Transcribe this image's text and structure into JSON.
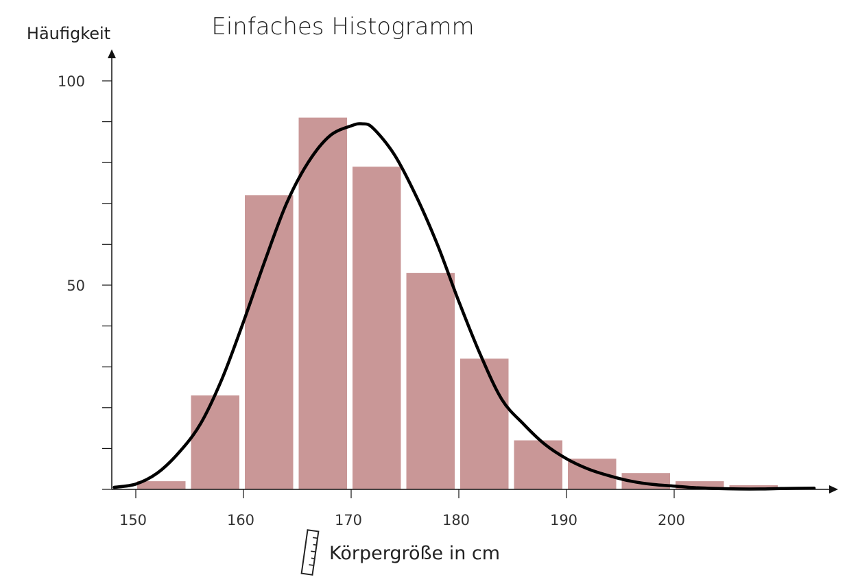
{
  "chart_data": {
    "type": "bar",
    "title": "Einfaches Histogramm",
    "xlabel": "Körpergröße in cm",
    "ylabel": "Häufigkeit",
    "xlim": [
      148,
      215
    ],
    "ylim": [
      0,
      100
    ],
    "x_ticks": [
      "150",
      "160",
      "170",
      "180",
      "190",
      "200"
    ],
    "y_ticks": [
      "100",
      "50"
    ],
    "bar_color": "#c99797",
    "curve_color": "#000000",
    "bins": [
      {
        "from": 150,
        "to": 155,
        "value": 2
      },
      {
        "from": 155,
        "to": 160,
        "value": 23
      },
      {
        "from": 160,
        "to": 165,
        "value": 72
      },
      {
        "from": 165,
        "to": 170,
        "value": 91
      },
      {
        "from": 170,
        "to": 175,
        "value": 79
      },
      {
        "from": 175,
        "to": 180,
        "value": 53
      },
      {
        "from": 180,
        "to": 185,
        "value": 32
      },
      {
        "from": 185,
        "to": 190,
        "value": 12
      },
      {
        "from": 190,
        "to": 195,
        "value": 7.5
      },
      {
        "from": 195,
        "to": 200,
        "value": 4
      },
      {
        "from": 200,
        "to": 205,
        "value": 2
      },
      {
        "from": 205,
        "to": 210,
        "value": 1
      }
    ],
    "curve": {
      "x": [
        148,
        150,
        152,
        154,
        156,
        158,
        160,
        162,
        164,
        166,
        168,
        170,
        171,
        172,
        174,
        176,
        178,
        180,
        182,
        184,
        186,
        188,
        190,
        192,
        194,
        196,
        198,
        200,
        202,
        204,
        206,
        208,
        210,
        213
      ],
      "y": [
        0.5,
        1.3,
        4,
        9,
        16,
        27,
        41,
        56,
        70,
        80,
        86.5,
        89,
        89.5,
        88.5,
        82,
        72,
        60,
        46,
        33,
        22,
        16,
        11,
        7.5,
        5,
        3.3,
        2,
        1.2,
        0.8,
        0.4,
        0.2,
        0.1,
        0.1,
        0.2,
        0.3
      ]
    }
  }
}
